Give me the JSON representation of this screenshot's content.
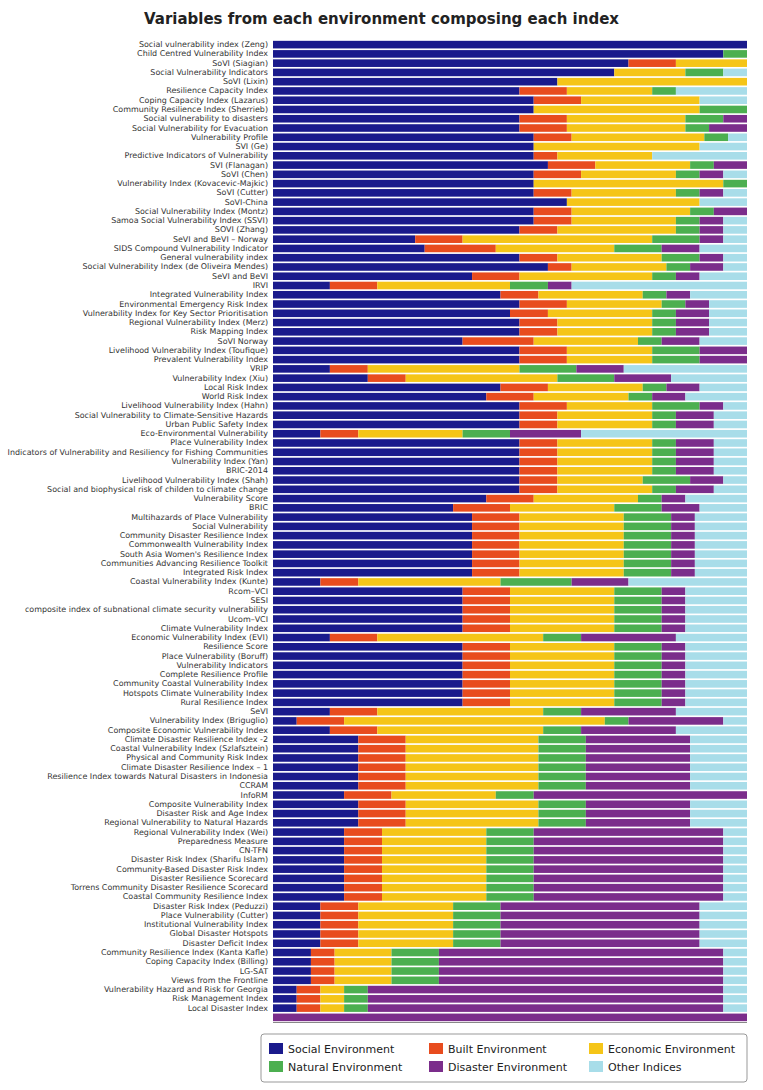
{
  "chart_data": {
    "type": "bar",
    "orientation": "horizontal",
    "stacked": true,
    "title": "Variables from each environment composing each index",
    "categories": [
      "Social vulnerability index (Zeng)",
      "Child Centred Vulnerability Index",
      "SoVI (Siagian)",
      "Social Vulnerability Indicators",
      "SoVI (Lixin)",
      "Resilience Capacity Index",
      "Coping Capacity Index (Lazarus)",
      "Community Resilience Index (Sherrieb)",
      "Social vulnerability to disasters",
      "Social Vulnerability for Evacuation",
      "Vulnerability Profile",
      "SVI (Ge)",
      "Predictive Indicators of Vulnerability",
      "SVI (Flanagan)",
      "SoVI (Chen)",
      "Vulnerability Index (Kovacevic-Majkic)",
      "SoVI (Cutter)",
      "SoVI-China",
      "Social Vulnerability Index (Montz)",
      "Samoa Social Vulnerability Index (SSVI)",
      "SOVI (Zhang)",
      "SeVI and BeVI – Norway",
      "SIDS Compound Vulnerability Indicator",
      "General vulnerability index",
      "Social Vulnerability Index (de Oliveira Mendes)",
      "SeVI and BeVI",
      "IRVI",
      "Integrated Vulnerability Index",
      "Environmental Emergency Risk Index",
      "Vulnerability Index for Key Sector Prioritisation",
      "Regional Vulnerability Index (Merz)",
      "Risk Mapping Index",
      "SoVI Norway",
      "Livelihood Vulnerability Index (Toufique)",
      "Prevalent Vulnerability Index",
      "VRIP",
      "Vulnerability Index (Xiu)",
      "Local Risk Index",
      "World Risk Index",
      "Livelihood Vulnerability Index (Hahn)",
      "Social Vulnerability to Climate-Sensitive Hazards",
      "Urban Public Safety Index",
      "Eco-Environmental Vulnerability",
      "Place Vulnerability Index",
      "Indicators of Vulnerability and Resiliency for Fishing Communities",
      "Vulnerability Index (Yan)",
      "BRIC-2014",
      "Livelihood Vulnerability Index (Shah)",
      "Social and biophysical risk of childen to climate change",
      "Vulnerability Score",
      "BRIC",
      "Multihazards of Place Vulnerability",
      "Social Vulnerability",
      "Community Disaster Resilience Index",
      "Commonwealth Vulnerability Index",
      "South Asia Women's Resilience Index",
      "Communities Advancing Resilience Toolkit",
      "Integrated Risk Index",
      "Coastal Vulnerability Index (Kunte)",
      "Rcom–VCI",
      "SESI",
      "composite index of subnational climate security vulnerability",
      "Ucom–VCI",
      "Climate Vulnerability Index",
      "Economic Vulnerability Index (EVI)",
      "Resilience Score",
      "Place Vulnerability (Boruff)",
      "Vulnerability Indicators",
      "Complete Resilience Profile",
      "Community Coastal Vulnerability Index",
      "Hotspots Climate Vulnerability Index",
      "Rural Resilience Index",
      "SeVI",
      "Vulnerability Index (Briguglio)",
      "Composite Economic Vulnerability Index",
      "Climate Disaster Resilience Index -2",
      "Coastal Vulnerability Index (Szlafsztein)",
      "Physical and Community Risk Index",
      "Climate Disaster Resilience Index – 1",
      "Resilience Index towards Natural Disasters in Indonesia",
      "CCRAM",
      "InfoRM",
      "Composite Vulnerability Index",
      "Disaster Risk and Age Index",
      "Regional Vulnerability to Natural Hazards",
      "Regional Vulnerability Index (Wei)",
      "Preparedness Measure",
      "CN-TFN",
      "Disaster Risk Index (Sharifu Islam)",
      "Community-Based Disaster Risk Index",
      "Disaster Resilience Scorecard",
      "Torrens Community Disaster Resilience Scorecard",
      "Coastal Community Resilience Index",
      "Disaster Risk Index (Peduzzi)",
      "Place Vulnerability (Cutter)",
      "Institutional Vulnerability Index",
      "Global Disaster Hotspots",
      "Disaster Deficit Index",
      "Community Resilience Index (Kanta Kafle)",
      "Coping Capacity Index (Billing)",
      "LG-SAT",
      "Views from the Frontline",
      "Vulnerability Hazard and Risk for Georgia",
      "Risk Management Index",
      "Local Disaster Index",
      null
    ],
    "series": [
      {
        "name": "Social Environment",
        "color": "#1a1a8c",
        "values": [
          1.0,
          0.95,
          0.75,
          0.72,
          0.6,
          0.52,
          0.55,
          0.55,
          0.52,
          0.52,
          0.55,
          0.55,
          0.55,
          0.58,
          0.55,
          0.55,
          0.55,
          0.62,
          0.55,
          0.55,
          0.52,
          0.3,
          0.32,
          0.52,
          0.58,
          0.42,
          0.12,
          0.48,
          0.52,
          0.5,
          0.52,
          0.52,
          0.4,
          0.52,
          0.52,
          0.12,
          0.2,
          0.48,
          0.45,
          0.52,
          0.52,
          0.52,
          0.1,
          0.52,
          0.52,
          0.52,
          0.52,
          0.52,
          0.52,
          0.45,
          0.38,
          0.42,
          0.42,
          0.42,
          0.42,
          0.42,
          0.42,
          0.42,
          0.1,
          0.4,
          0.4,
          0.4,
          0.4,
          0.4,
          0.12,
          0.4,
          0.4,
          0.4,
          0.4,
          0.4,
          0.4,
          0.4,
          0.12,
          0.05,
          0.12,
          0.18,
          0.18,
          0.18,
          0.18,
          0.18,
          0.18,
          0.15,
          0.18,
          0.18,
          0.18,
          0.15,
          0.15,
          0.15,
          0.15,
          0.15,
          0.15,
          0.15,
          0.15,
          0.1,
          0.1,
          0.1,
          0.1,
          0.1,
          0.08,
          0.08,
          0.08,
          0.08,
          0.05,
          0.05,
          0.05,
          0.0
        ]
      },
      {
        "name": "Built Environment",
        "color": "#e84c1e",
        "values": [
          0.0,
          0.0,
          0.1,
          0.0,
          0.0,
          0.1,
          0.1,
          0.0,
          0.1,
          0.1,
          0.08,
          0.0,
          0.05,
          0.1,
          0.1,
          0.0,
          0.08,
          0.0,
          0.08,
          0.08,
          0.08,
          0.1,
          0.15,
          0.08,
          0.05,
          0.1,
          0.1,
          0.08,
          0.1,
          0.08,
          0.08,
          0.08,
          0.15,
          0.1,
          0.1,
          0.08,
          0.08,
          0.1,
          0.1,
          0.1,
          0.08,
          0.08,
          0.08,
          0.08,
          0.08,
          0.08,
          0.08,
          0.08,
          0.08,
          0.1,
          0.12,
          0.1,
          0.1,
          0.1,
          0.1,
          0.1,
          0.1,
          0.1,
          0.08,
          0.1,
          0.1,
          0.1,
          0.1,
          0.1,
          0.1,
          0.1,
          0.1,
          0.1,
          0.1,
          0.1,
          0.1,
          0.1,
          0.1,
          0.1,
          0.1,
          0.1,
          0.1,
          0.1,
          0.1,
          0.1,
          0.1,
          0.1,
          0.1,
          0.1,
          0.1,
          0.08,
          0.08,
          0.08,
          0.08,
          0.08,
          0.08,
          0.08,
          0.08,
          0.08,
          0.08,
          0.08,
          0.08,
          0.08,
          0.05,
          0.05,
          0.05,
          0.05,
          0.05,
          0.05,
          0.05,
          0.0
        ]
      },
      {
        "name": "Economic Environment",
        "color": "#f5c518",
        "values": [
          0.0,
          0.0,
          0.15,
          0.15,
          0.4,
          0.18,
          0.25,
          0.35,
          0.25,
          0.25,
          0.28,
          0.35,
          0.2,
          0.2,
          0.2,
          0.4,
          0.22,
          0.28,
          0.25,
          0.22,
          0.25,
          0.4,
          0.25,
          0.22,
          0.2,
          0.28,
          0.28,
          0.22,
          0.2,
          0.22,
          0.2,
          0.2,
          0.22,
          0.18,
          0.18,
          0.32,
          0.32,
          0.2,
          0.2,
          0.18,
          0.2,
          0.2,
          0.22,
          0.2,
          0.2,
          0.2,
          0.2,
          0.18,
          0.2,
          0.22,
          0.22,
          0.22,
          0.22,
          0.22,
          0.22,
          0.22,
          0.22,
          0.22,
          0.3,
          0.22,
          0.22,
          0.22,
          0.22,
          0.22,
          0.35,
          0.22,
          0.22,
          0.22,
          0.22,
          0.22,
          0.22,
          0.22,
          0.35,
          0.55,
          0.35,
          0.28,
          0.28,
          0.28,
          0.28,
          0.28,
          0.28,
          0.22,
          0.28,
          0.28,
          0.28,
          0.22,
          0.22,
          0.22,
          0.22,
          0.22,
          0.22,
          0.22,
          0.22,
          0.2,
          0.2,
          0.2,
          0.2,
          0.2,
          0.12,
          0.12,
          0.12,
          0.12,
          0.05,
          0.05,
          0.05,
          0.0
        ]
      },
      {
        "name": "Natural Environment",
        "color": "#4caf50",
        "values": [
          0.0,
          0.05,
          0.0,
          0.08,
          0.0,
          0.05,
          0.0,
          0.1,
          0.08,
          0.05,
          0.05,
          0.0,
          0.0,
          0.05,
          0.05,
          0.05,
          0.05,
          0.0,
          0.05,
          0.05,
          0.05,
          0.1,
          0.1,
          0.08,
          0.05,
          0.05,
          0.08,
          0.05,
          0.05,
          0.05,
          0.05,
          0.05,
          0.05,
          0.1,
          0.1,
          0.12,
          0.12,
          0.05,
          0.05,
          0.1,
          0.05,
          0.05,
          0.1,
          0.05,
          0.05,
          0.05,
          0.05,
          0.1,
          0.05,
          0.05,
          0.1,
          0.1,
          0.1,
          0.1,
          0.1,
          0.1,
          0.1,
          0.1,
          0.15,
          0.1,
          0.1,
          0.1,
          0.1,
          0.1,
          0.08,
          0.1,
          0.1,
          0.1,
          0.1,
          0.1,
          0.1,
          0.1,
          0.08,
          0.05,
          0.08,
          0.1,
          0.1,
          0.1,
          0.1,
          0.1,
          0.1,
          0.08,
          0.1,
          0.1,
          0.1,
          0.1,
          0.1,
          0.1,
          0.1,
          0.1,
          0.1,
          0.1,
          0.1,
          0.1,
          0.1,
          0.1,
          0.1,
          0.1,
          0.1,
          0.1,
          0.1,
          0.1,
          0.05,
          0.05,
          0.05,
          0.0
        ]
      },
      {
        "name": "Disaster Environment",
        "color": "#7b2d8b",
        "values": [
          0.0,
          0.0,
          0.0,
          0.0,
          0.0,
          0.0,
          0.0,
          0.0,
          0.05,
          0.08,
          0.0,
          0.0,
          0.0,
          0.07,
          0.05,
          0.0,
          0.05,
          0.0,
          0.07,
          0.05,
          0.05,
          0.05,
          0.08,
          0.05,
          0.07,
          0.05,
          0.05,
          0.05,
          0.05,
          0.07,
          0.07,
          0.07,
          0.08,
          0.1,
          0.1,
          0.1,
          0.12,
          0.07,
          0.07,
          0.05,
          0.08,
          0.08,
          0.15,
          0.08,
          0.08,
          0.08,
          0.08,
          0.07,
          0.08,
          0.05,
          0.08,
          0.05,
          0.05,
          0.05,
          0.05,
          0.05,
          0.05,
          0.05,
          0.12,
          0.05,
          0.05,
          0.05,
          0.05,
          0.05,
          0.2,
          0.05,
          0.05,
          0.05,
          0.05,
          0.05,
          0.05,
          0.05,
          0.2,
          0.2,
          0.2,
          0.22,
          0.22,
          0.22,
          0.22,
          0.22,
          0.22,
          0.45,
          0.22,
          0.22,
          0.22,
          0.4,
          0.4,
          0.4,
          0.4,
          0.4,
          0.4,
          0.4,
          0.4,
          0.42,
          0.42,
          0.42,
          0.42,
          0.42,
          0.6,
          0.6,
          0.6,
          0.6,
          0.75,
          0.75,
          0.75,
          1.0
        ]
      },
      {
        "name": "Other Indices",
        "color": "#a8dde9",
        "values": [
          0.0,
          0.0,
          0.0,
          0.05,
          0.0,
          0.15,
          0.1,
          0.0,
          0.0,
          0.0,
          0.04,
          0.1,
          0.2,
          0.0,
          0.05,
          0.0,
          0.05,
          0.1,
          0.0,
          0.05,
          0.05,
          0.05,
          0.1,
          0.05,
          0.05,
          0.1,
          0.37,
          0.12,
          0.08,
          0.08,
          0.08,
          0.08,
          0.1,
          0.0,
          0.0,
          0.26,
          0.16,
          0.1,
          0.13,
          0.05,
          0.07,
          0.07,
          0.35,
          0.07,
          0.07,
          0.07,
          0.07,
          0.05,
          0.07,
          0.13,
          0.1,
          0.11,
          0.11,
          0.11,
          0.11,
          0.11,
          0.11,
          0.11,
          0.25,
          0.13,
          0.13,
          0.13,
          0.13,
          0.13,
          0.15,
          0.13,
          0.13,
          0.13,
          0.13,
          0.13,
          0.13,
          0.13,
          0.15,
          0.05,
          0.15,
          0.12,
          0.12,
          0.12,
          0.12,
          0.12,
          0.12,
          0.0,
          0.12,
          0.12,
          0.12,
          0.05,
          0.05,
          0.05,
          0.05,
          0.05,
          0.05,
          0.05,
          0.05,
          0.1,
          0.1,
          0.1,
          0.1,
          0.1,
          0.05,
          0.05,
          0.05,
          0.05,
          0.05,
          0.05,
          0.05,
          0.0
        ]
      }
    ],
    "xlim": [
      0,
      1
    ],
    "tick_labels": "y",
    "grid": false,
    "legend": "lower right"
  }
}
